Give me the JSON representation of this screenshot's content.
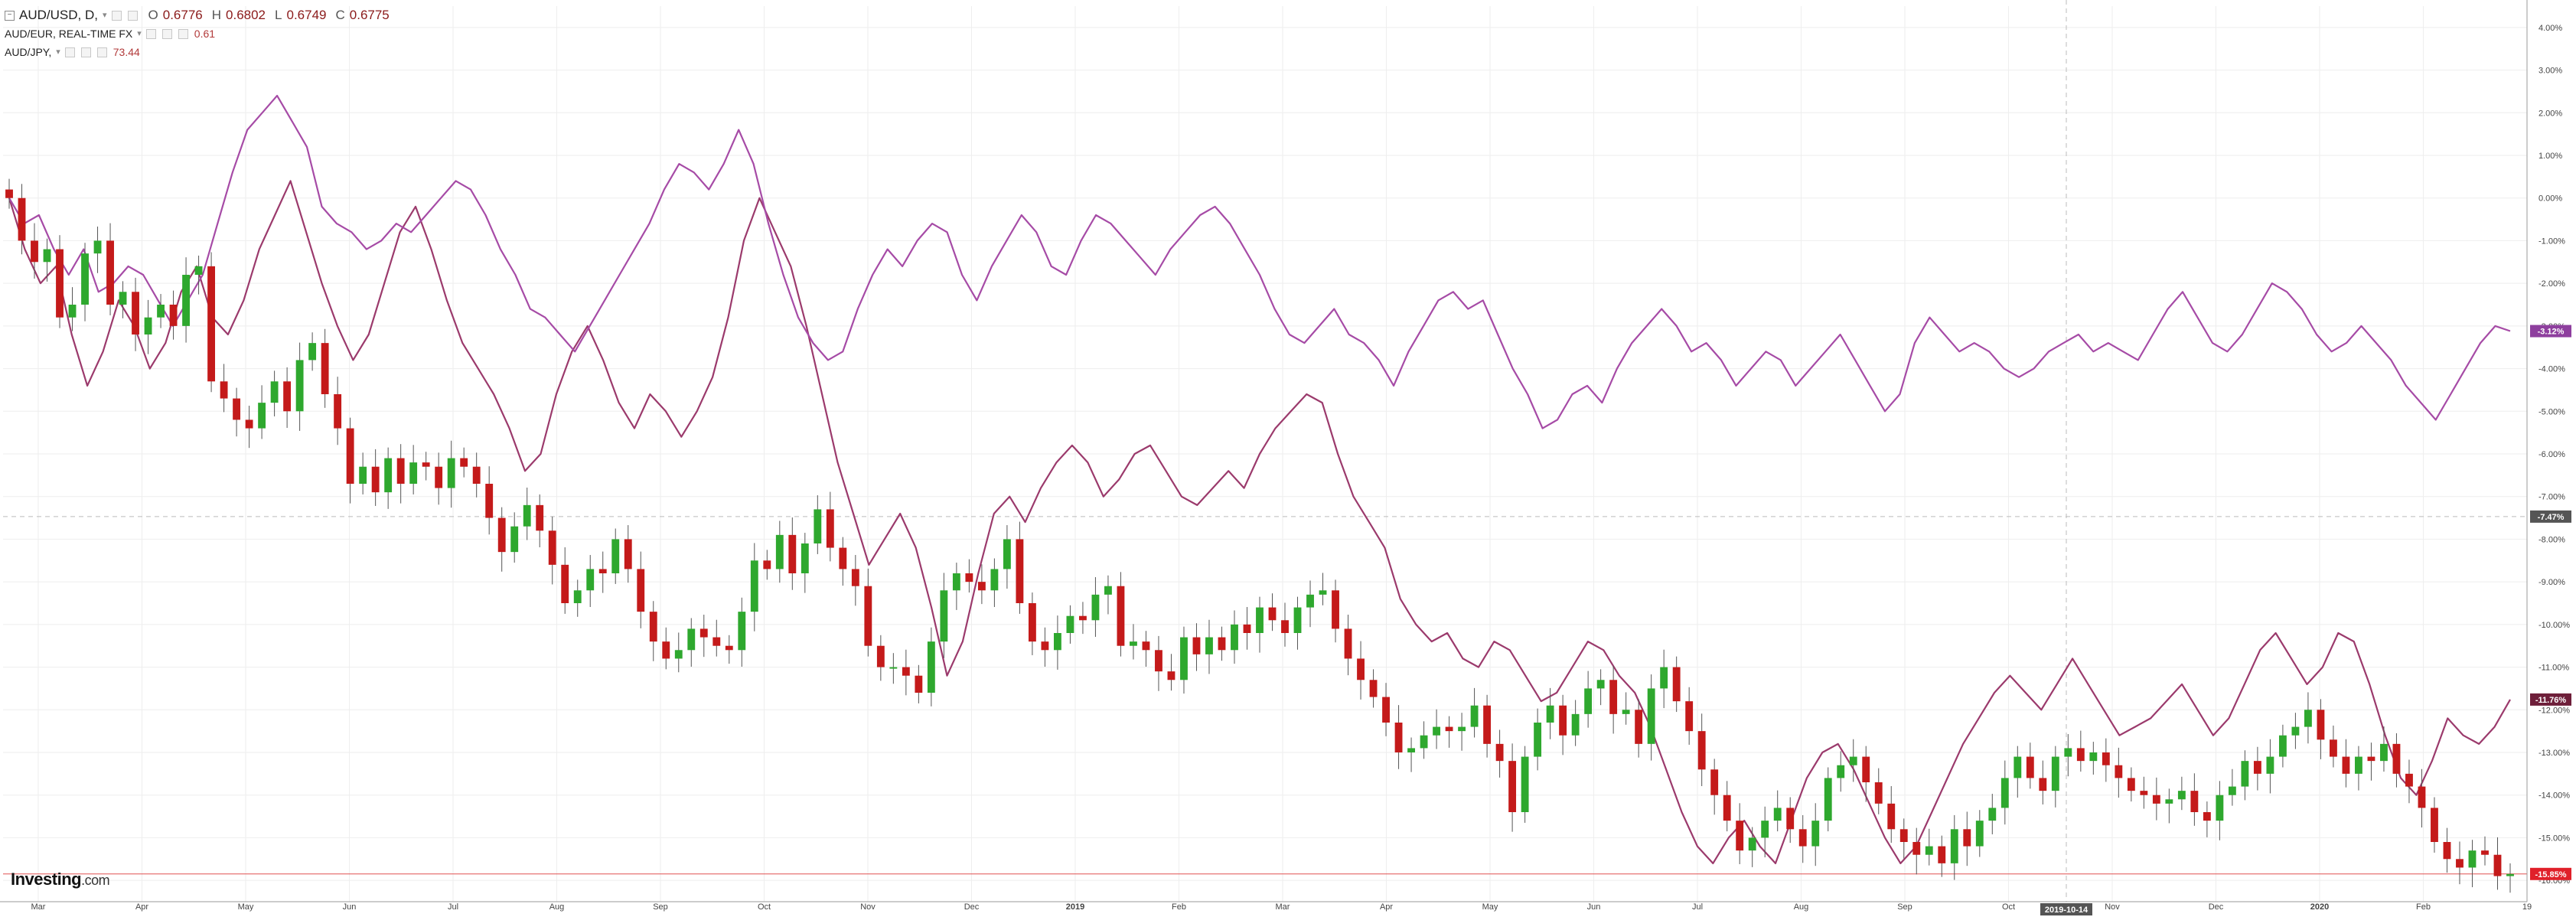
{
  "legend": {
    "main_symbol": "AUD/USD, D,",
    "open_label": "O",
    "open": "0.6776",
    "high_label": "H",
    "high": "0.6802",
    "low_label": "L",
    "low": "0.6749",
    "close_label": "C",
    "close": "0.6775",
    "series2_symbol": "AUD/EUR, REAL-TIME FX",
    "series2_value": "0.61",
    "series3_symbol": "AUD/JPY,",
    "series3_value": "73.44"
  },
  "logo": {
    "text": "Investing",
    "suffix": ".com"
  },
  "colors": {
    "up": "#2ea82e",
    "down": "#c41a1a",
    "aud_eur": "#a64ba6",
    "aud_jpy": "#9b3a6c",
    "grid": "#eeeeee",
    "crosshair": "#bbbbbb",
    "current_line": "#e05050"
  },
  "chart_data": {
    "type": "line",
    "scale": "percent change from start",
    "grid": true,
    "ylim": [
      -16.5,
      4.5
    ],
    "y_ticks": [
      "4.00%",
      "3.00%",
      "2.00%",
      "1.00%",
      "0.00%",
      "-1.00%",
      "-2.00%",
      "-3.00%",
      "-4.00%",
      "-5.00%",
      "-6.00%",
      "-7.00%",
      "-8.00%",
      "-9.00%",
      "-10.00%",
      "-11.00%",
      "-12.00%",
      "-13.00%",
      "-14.00%",
      "-15.00%",
      "-16.00%"
    ],
    "x_ticks": [
      "Mar",
      "Apr",
      "May",
      "Jun",
      "Jul",
      "Aug",
      "Sep",
      "Oct",
      "Nov",
      "Dec",
      "2019",
      "Feb",
      "Mar",
      "Apr",
      "May",
      "Jun",
      "Jul",
      "Aug",
      "Sep",
      "Oct",
      "Nov",
      "Dec",
      "2020",
      "Feb",
      "19"
    ],
    "crosshair": {
      "date": "2019-10-14",
      "value": "-7.47%"
    },
    "last_value_badges": [
      {
        "series": "AUD/EUR",
        "value": "-3.12%"
      },
      {
        "series": "AUD/JPY",
        "value": "-11.76%"
      },
      {
        "series": "AUD/USD",
        "value": "-15.85%"
      }
    ],
    "series": [
      {
        "name": "AUD/USD",
        "style": "candlestick",
        "values": [
          0.0,
          -1.0,
          -1.5,
          -1.2,
          -2.8,
          -2.5,
          -1.3,
          -1.0,
          -2.5,
          -2.2,
          -3.2,
          -2.8,
          -2.5,
          -3.0,
          -1.8,
          -1.6,
          -4.3,
          -4.7,
          -5.2,
          -5.4,
          -4.8,
          -4.3,
          -5.0,
          -3.8,
          -3.4,
          -4.6,
          -5.4,
          -6.7,
          -6.3,
          -6.9,
          -6.1,
          -6.7,
          -6.2,
          -6.3,
          -6.8,
          -6.1,
          -6.3,
          -6.7,
          -7.5,
          -8.3,
          -7.7,
          -7.2,
          -7.8,
          -8.6,
          -9.5,
          -9.2,
          -8.7,
          -8.8,
          -8.0,
          -8.7,
          -9.7,
          -10.4,
          -10.8,
          -10.6,
          -10.1,
          -10.3,
          -10.5,
          -10.6,
          -9.7,
          -8.5,
          -8.7,
          -7.9,
          -8.8,
          -8.1,
          -7.3,
          -8.2,
          -8.7,
          -9.1,
          -10.5,
          -11.0,
          -11.0,
          -11.2,
          -11.6,
          -10.4,
          -9.2,
          -8.8,
          -9.0,
          -9.2,
          -8.7,
          -8.0,
          -9.5,
          -10.4,
          -10.6,
          -10.2,
          -9.8,
          -9.9,
          -9.3,
          -9.1,
          -10.5,
          -10.4,
          -10.6,
          -11.1,
          -11.3,
          -10.3,
          -10.7,
          -10.3,
          -10.6,
          -10.0,
          -10.2,
          -9.6,
          -9.9,
          -10.2,
          -9.6,
          -9.3,
          -9.2,
          -10.1,
          -10.8,
          -11.3,
          -11.7,
          -12.3,
          -13.0,
          -12.9,
          -12.6,
          -12.4,
          -12.5,
          -12.4,
          -11.9,
          -12.8,
          -13.2,
          -14.4,
          -13.1,
          -12.3,
          -11.9,
          -12.6,
          -12.1,
          -11.5,
          -11.3,
          -12.1,
          -12.0,
          -12.8,
          -11.5,
          -11.0,
          -11.8,
          -12.5,
          -13.4,
          -14.0,
          -14.6,
          -15.3,
          -15.0,
          -14.6,
          -14.3,
          -14.8,
          -15.2,
          -14.6,
          -13.6,
          -13.3,
          -13.1,
          -13.7,
          -14.2,
          -14.8,
          -15.1,
          -15.4,
          -15.2,
          -15.6,
          -14.8,
          -15.2,
          -14.6,
          -14.3,
          -13.6,
          -13.1,
          -13.6,
          -13.9,
          -13.1,
          -12.9,
          -13.2,
          -13.0,
          -13.3,
          -13.6,
          -13.9,
          -14.0,
          -14.2,
          -14.1,
          -13.9,
          -14.4,
          -14.6,
          -14.0,
          -13.8,
          -13.2,
          -13.5,
          -13.1,
          -12.6,
          -12.4,
          -12.0,
          -12.7,
          -13.1,
          -13.5,
          -13.1,
          -13.2,
          -12.8,
          -13.5,
          -13.8,
          -14.3,
          -15.1,
          -15.5,
          -15.7,
          -15.3,
          -15.4,
          -15.9,
          -15.85
        ]
      },
      {
        "name": "AUD/EUR",
        "style": "line",
        "values": [
          0.0,
          -0.6,
          -0.4,
          -1.2,
          -1.8,
          -1.2,
          -2.2,
          -2.0,
          -1.6,
          -1.8,
          -2.4,
          -3.0,
          -2.4,
          -1.8,
          -0.6,
          0.6,
          1.6,
          2.0,
          2.4,
          1.8,
          1.2,
          -0.2,
          -0.6,
          -0.8,
          -1.2,
          -1.0,
          -0.6,
          -0.8,
          -0.4,
          0.0,
          0.4,
          0.2,
          -0.4,
          -1.2,
          -1.8,
          -2.6,
          -2.8,
          -3.2,
          -3.6,
          -3.0,
          -2.4,
          -1.8,
          -1.2,
          -0.6,
          0.2,
          0.8,
          0.6,
          0.2,
          0.8,
          1.6,
          0.8,
          -0.6,
          -1.8,
          -2.8,
          -3.4,
          -3.8,
          -3.6,
          -2.6,
          -1.8,
          -1.2,
          -1.6,
          -1.0,
          -0.6,
          -0.8,
          -1.8,
          -2.4,
          -1.6,
          -1.0,
          -0.4,
          -0.8,
          -1.6,
          -1.8,
          -1.0,
          -0.4,
          -0.6,
          -1.0,
          -1.4,
          -1.8,
          -1.2,
          -0.8,
          -0.4,
          -0.2,
          -0.6,
          -1.2,
          -1.8,
          -2.6,
          -3.2,
          -3.4,
          -3.0,
          -2.6,
          -3.2,
          -3.4,
          -3.8,
          -4.4,
          -3.6,
          -3.0,
          -2.4,
          -2.2,
          -2.6,
          -2.4,
          -3.2,
          -4.0,
          -4.6,
          -5.4,
          -5.2,
          -4.6,
          -4.4,
          -4.8,
          -4.0,
          -3.4,
          -3.0,
          -2.6,
          -3.0,
          -3.6,
          -3.4,
          -3.8,
          -4.4,
          -4.0,
          -3.6,
          -3.8,
          -4.4,
          -4.0,
          -3.6,
          -3.2,
          -3.8,
          -4.4,
          -5.0,
          -4.6,
          -3.4,
          -2.8,
          -3.2,
          -3.6,
          -3.4,
          -3.6,
          -4.0,
          -4.2,
          -4.0,
          -3.6,
          -3.4,
          -3.2,
          -3.6,
          -3.4,
          -3.6,
          -3.8,
          -3.2,
          -2.6,
          -2.2,
          -2.8,
          -3.4,
          -3.6,
          -3.2,
          -2.6,
          -2.0,
          -2.2,
          -2.6,
          -3.2,
          -3.6,
          -3.4,
          -3.0,
          -3.4,
          -3.8,
          -4.4,
          -4.8,
          -5.2,
          -4.6,
          -4.0,
          -3.4,
          -3.0,
          -3.12
        ]
      },
      {
        "name": "AUD/JPY",
        "style": "line",
        "values": [
          0.0,
          -1.2,
          -2.0,
          -1.6,
          -3.2,
          -4.4,
          -3.6,
          -2.4,
          -3.0,
          -4.0,
          -3.4,
          -2.2,
          -1.6,
          -2.8,
          -3.2,
          -2.4,
          -1.2,
          -0.4,
          0.4,
          -0.8,
          -2.0,
          -3.0,
          -3.8,
          -3.2,
          -2.0,
          -0.8,
          -0.2,
          -1.2,
          -2.4,
          -3.4,
          -4.0,
          -4.6,
          -5.4,
          -6.4,
          -6.0,
          -4.6,
          -3.6,
          -3.0,
          -3.8,
          -4.8,
          -5.4,
          -4.6,
          -5.0,
          -5.6,
          -5.0,
          -4.2,
          -2.8,
          -1.0,
          0.0,
          -0.8,
          -1.6,
          -3.0,
          -4.6,
          -6.2,
          -7.4,
          -8.6,
          -8.0,
          -7.4,
          -8.2,
          -9.6,
          -11.2,
          -10.4,
          -8.8,
          -7.4,
          -7.0,
          -7.6,
          -6.8,
          -6.2,
          -5.8,
          -6.2,
          -7.0,
          -6.6,
          -6.0,
          -5.8,
          -6.4,
          -7.0,
          -7.2,
          -6.8,
          -6.4,
          -6.8,
          -6.0,
          -5.4,
          -5.0,
          -4.6,
          -4.8,
          -6.0,
          -7.0,
          -7.6,
          -8.2,
          -9.4,
          -10.0,
          -10.4,
          -10.2,
          -10.8,
          -11.0,
          -10.4,
          -10.6,
          -11.2,
          -11.8,
          -11.6,
          -11.0,
          -10.4,
          -10.6,
          -11.2,
          -11.6,
          -12.4,
          -13.4,
          -14.4,
          -15.2,
          -15.6,
          -15.0,
          -14.6,
          -15.2,
          -15.6,
          -14.6,
          -13.6,
          -13.0,
          -12.8,
          -13.4,
          -14.2,
          -15.0,
          -15.6,
          -15.2,
          -14.4,
          -13.6,
          -12.8,
          -12.2,
          -11.6,
          -11.2,
          -11.6,
          -12.0,
          -11.4,
          -10.8,
          -11.4,
          -12.0,
          -12.6,
          -12.4,
          -12.2,
          -11.8,
          -11.4,
          -12.0,
          -12.6,
          -12.2,
          -11.4,
          -10.6,
          -10.2,
          -10.8,
          -11.4,
          -11.0,
          -10.2,
          -10.4,
          -11.4,
          -12.6,
          -13.6,
          -14.0,
          -13.2,
          -12.2,
          -12.6,
          -12.8,
          -12.4,
          -11.76
        ]
      }
    ]
  }
}
